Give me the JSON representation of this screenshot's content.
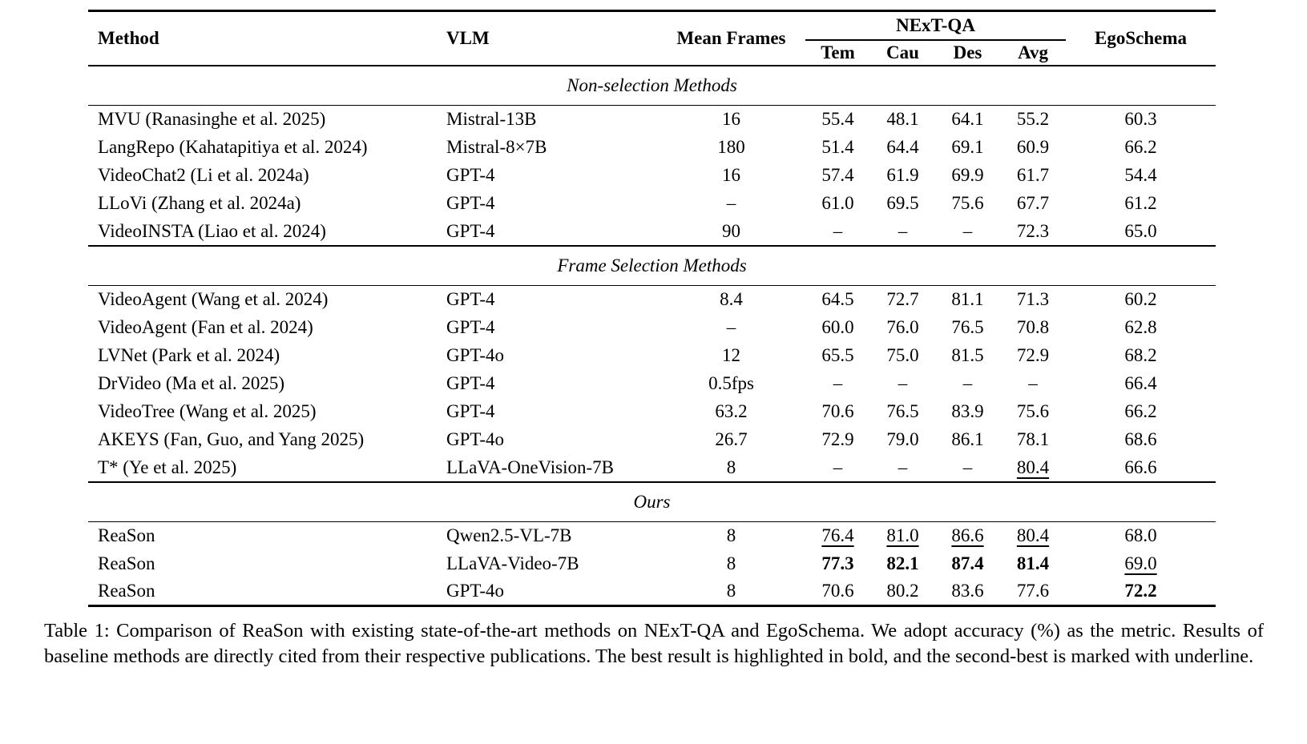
{
  "table": {
    "header": {
      "method": "Method",
      "vlm": "VLM",
      "mean_frames": "Mean Frames",
      "group": "NExT-QA",
      "subcolumns": [
        "Tem",
        "Cau",
        "Des",
        "Avg"
      ],
      "egoschema": "EgoSchema"
    },
    "sections": [
      {
        "title": "Non-selection Methods",
        "rows": [
          {
            "method": "MVU (Ranasinghe et al. 2025)",
            "vlm": "Mistral-13B",
            "frames": "16",
            "metrics": [
              "55.4",
              "48.1",
              "64.1",
              "55.2",
              "60.3"
            ],
            "marks": [
              "",
              "",
              "",
              "",
              ""
            ]
          },
          {
            "method": "LangRepo (Kahatapitiya et al. 2024)",
            "vlm": "Mistral-8×7B",
            "frames": "180",
            "metrics": [
              "51.4",
              "64.4",
              "69.1",
              "60.9",
              "66.2"
            ],
            "marks": [
              "",
              "",
              "",
              "",
              ""
            ]
          },
          {
            "method": "VideoChat2 (Li et al. 2024a)",
            "vlm": "GPT-4",
            "frames": "16",
            "metrics": [
              "57.4",
              "61.9",
              "69.9",
              "61.7",
              "54.4"
            ],
            "marks": [
              "",
              "",
              "",
              "",
              ""
            ]
          },
          {
            "method": "LLoVi (Zhang et al. 2024a)",
            "vlm": "GPT-4",
            "frames": "–",
            "metrics": [
              "61.0",
              "69.5",
              "75.6",
              "67.7",
              "61.2"
            ],
            "marks": [
              "",
              "",
              "",
              "",
              ""
            ]
          },
          {
            "method": "VideoINSTA (Liao et al. 2024)",
            "vlm": "GPT-4",
            "frames": "90",
            "metrics": [
              "–",
              "–",
              "–",
              "72.3",
              "65.0"
            ],
            "marks": [
              "",
              "",
              "",
              "",
              ""
            ]
          }
        ]
      },
      {
        "title": "Frame Selection Methods",
        "rows": [
          {
            "method": "VideoAgent (Wang et al. 2024)",
            "vlm": "GPT-4",
            "frames": "8.4",
            "metrics": [
              "64.5",
              "72.7",
              "81.1",
              "71.3",
              "60.2"
            ],
            "marks": [
              "",
              "",
              "",
              "",
              ""
            ]
          },
          {
            "method": "VideoAgent (Fan et al. 2024)",
            "vlm": "GPT-4",
            "frames": "–",
            "metrics": [
              "60.0",
              "76.0",
              "76.5",
              "70.8",
              "62.8"
            ],
            "marks": [
              "",
              "",
              "",
              "",
              ""
            ]
          },
          {
            "method": "LVNet (Park et al. 2024)",
            "vlm": "GPT-4o",
            "frames": "12",
            "metrics": [
              "65.5",
              "75.0",
              "81.5",
              "72.9",
              "68.2"
            ],
            "marks": [
              "",
              "",
              "",
              "",
              ""
            ]
          },
          {
            "method": "DrVideo (Ma et al. 2025)",
            "vlm": "GPT-4",
            "frames": "0.5fps",
            "metrics": [
              "–",
              "–",
              "–",
              "–",
              "66.4"
            ],
            "marks": [
              "",
              "",
              "",
              "",
              ""
            ]
          },
          {
            "method": "VideoTree (Wang et al. 2025)",
            "vlm": "GPT-4",
            "frames": "63.2",
            "metrics": [
              "70.6",
              "76.5",
              "83.9",
              "75.6",
              "66.2"
            ],
            "marks": [
              "",
              "",
              "",
              "",
              ""
            ]
          },
          {
            "method": "AKEYS (Fan, Guo, and Yang 2025)",
            "vlm": "GPT-4o",
            "frames": "26.7",
            "metrics": [
              "72.9",
              "79.0",
              "86.1",
              "78.1",
              "68.6"
            ],
            "marks": [
              "",
              "",
              "",
              "",
              ""
            ]
          },
          {
            "method": "T* (Ye et al. 2025)",
            "vlm": "LLaVA-OneVision-7B",
            "frames": "8",
            "metrics": [
              "–",
              "–",
              "–",
              "80.4",
              "66.6"
            ],
            "marks": [
              "",
              "",
              "",
              "u",
              ""
            ]
          }
        ]
      },
      {
        "title": "Ours",
        "rows": [
          {
            "method": "ReaSon",
            "vlm": "Qwen2.5-VL-7B",
            "frames": "8",
            "metrics": [
              "76.4",
              "81.0",
              "86.6",
              "80.4",
              "68.0"
            ],
            "marks": [
              "u",
              "u",
              "u",
              "u",
              ""
            ]
          },
          {
            "method": "ReaSon",
            "vlm": "LLaVA-Video-7B",
            "frames": "8",
            "metrics": [
              "77.3",
              "82.1",
              "87.4",
              "81.4",
              "69.0"
            ],
            "marks": [
              "b",
              "b",
              "b",
              "b",
              "u"
            ]
          },
          {
            "method": "ReaSon",
            "vlm": "GPT-4o",
            "frames": "8",
            "metrics": [
              "70.6",
              "80.2",
              "83.6",
              "77.6",
              "72.2"
            ],
            "marks": [
              "",
              "",
              "",
              "",
              "b"
            ]
          }
        ]
      }
    ]
  },
  "caption": "Table 1: Comparison of ReaSon with existing state-of-the-art methods on NExT-QA and EgoSchema. We adopt accuracy (%) as the metric. Results of baseline methods are directly cited from their respective publications. The best result is highlighted in bold, and the second-best is marked with underline.",
  "colors": {
    "text": "#000000",
    "background": "#ffffff",
    "rule": "#000000"
  }
}
